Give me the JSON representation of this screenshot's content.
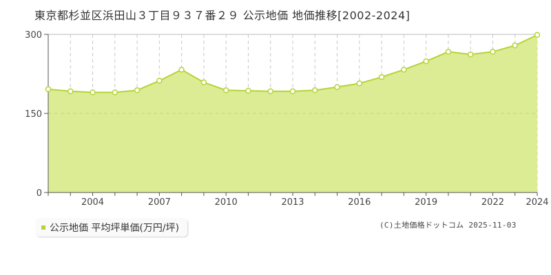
{
  "title": "東京都杉並区浜田山３丁目９３７番２９ 公示地価 地価推移[2002-2024]",
  "legend": {
    "label": "公示地価 平均坪単価(万円/坪)",
    "color": "#b5d334"
  },
  "credit": "(C)土地価格ドットコム 2025-11-03",
  "colors": {
    "fill": "#dcec94",
    "line": "#b5d334",
    "grid": "#c8c8c8",
    "axis": "#555555"
  },
  "chart_data": {
    "type": "area",
    "title": "東京都杉並区浜田山３丁目９３７番２９ 公示地価 地価推移[2002-2024]",
    "xlabel": "",
    "ylabel": "公示地価 平均坪単価(万円/坪)",
    "ylim": [
      0,
      300
    ],
    "yticks": [
      0,
      150,
      300
    ],
    "xticks": [
      2004,
      2007,
      2010,
      2013,
      2016,
      2019,
      2022,
      2024
    ],
    "grid": true,
    "legend_position": "bottom-left",
    "x": [
      2002,
      2003,
      2004,
      2005,
      2006,
      2007,
      2008,
      2009,
      2010,
      2011,
      2012,
      2013,
      2014,
      2015,
      2016,
      2017,
      2018,
      2019,
      2020,
      2021,
      2022,
      2023,
      2024
    ],
    "series": [
      {
        "name": "公示地価 平均坪単価(万円/坪)",
        "values": [
          196,
          192,
          190,
          190,
          194,
          212,
          233,
          209,
          194,
          193,
          192,
          192,
          194,
          200,
          207,
          219,
          233,
          249,
          267,
          262,
          267,
          279,
          299
        ]
      }
    ]
  }
}
